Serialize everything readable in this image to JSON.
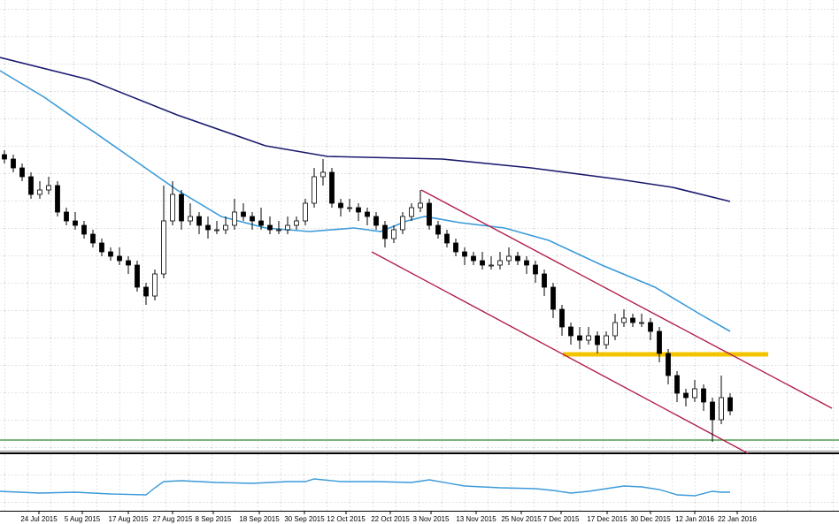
{
  "chart_data": {
    "type": "candlestick",
    "xlim": [
      -0.5,
      94.3
    ],
    "ylim": [
      0,
      102
    ],
    "up_color": "#ffffff",
    "down_color": "#000000",
    "outline_color": "#000000",
    "ohlc": [
      [
        67,
        68,
        65,
        66
      ],
      [
        66,
        67,
        63,
        64
      ],
      [
        64,
        65,
        61,
        62
      ],
      [
        62,
        63,
        57,
        58
      ],
      [
        58,
        61,
        57,
        59
      ],
      [
        59,
        62,
        58,
        60
      ],
      [
        60,
        61,
        53,
        54
      ],
      [
        54,
        55,
        51,
        52
      ],
      [
        52,
        54,
        50,
        51
      ],
      [
        51,
        52,
        48,
        49
      ],
      [
        49,
        50,
        46,
        47
      ],
      [
        47,
        48,
        44,
        45
      ],
      [
        45,
        46,
        43,
        44
      ],
      [
        44,
        46,
        42,
        43
      ],
      [
        43,
        44,
        40,
        42
      ],
      [
        42,
        43,
        36,
        37
      ],
      [
        37,
        38,
        33,
        35
      ],
      [
        35,
        41,
        34,
        40
      ],
      [
        40,
        60,
        39,
        52
      ],
      [
        52,
        61,
        51,
        58
      ],
      [
        58,
        59,
        50,
        52
      ],
      [
        52,
        56,
        51,
        53
      ],
      [
        53,
        54,
        49,
        51
      ],
      [
        51,
        53,
        48,
        50
      ],
      [
        50,
        52,
        49,
        50
      ],
      [
        50,
        53,
        49,
        51
      ],
      [
        51,
        57,
        50,
        54
      ],
      [
        54,
        56,
        52,
        53
      ],
      [
        53,
        54,
        50,
        52
      ],
      [
        52,
        55,
        50,
        51
      ],
      [
        51,
        53,
        49,
        50
      ],
      [
        50,
        52,
        49,
        50
      ],
      [
        50,
        53,
        49,
        51
      ],
      [
        51,
        53,
        50,
        52
      ],
      [
        52,
        57,
        51,
        56
      ],
      [
        56,
        64,
        55,
        62
      ],
      [
        62,
        66,
        60,
        63
      ],
      [
        63,
        64,
        55,
        56
      ],
      [
        56,
        57,
        53,
        55
      ],
      [
        55,
        57,
        54,
        55
      ],
      [
        55,
        56,
        52,
        54
      ],
      [
        54,
        55,
        51,
        53
      ],
      [
        53,
        54,
        50,
        51
      ],
      [
        51,
        52,
        46,
        48
      ],
      [
        48,
        51,
        47,
        50
      ],
      [
        50,
        54,
        49,
        53
      ],
      [
        53,
        56,
        52,
        55
      ],
      [
        55,
        59,
        54,
        56
      ],
      [
        56,
        57,
        50,
        51
      ],
      [
        51,
        52,
        48,
        49
      ],
      [
        49,
        50,
        46,
        47
      ],
      [
        47,
        48,
        44,
        45
      ],
      [
        45,
        46,
        42,
        44
      ],
      [
        44,
        45,
        42,
        43
      ],
      [
        43,
        45,
        41,
        42
      ],
      [
        42,
        44,
        41,
        42
      ],
      [
        42,
        45,
        41,
        43
      ],
      [
        43,
        46,
        42,
        44
      ],
      [
        44,
        45,
        42,
        43
      ],
      [
        43,
        44,
        40,
        42
      ],
      [
        42,
        43,
        38,
        40
      ],
      [
        40,
        41,
        35,
        37
      ],
      [
        37,
        38,
        30,
        32
      ],
      [
        32,
        33,
        26,
        28
      ],
      [
        28,
        29,
        24,
        26
      ],
      [
        26,
        28,
        23,
        25
      ],
      [
        25,
        28,
        24,
        26
      ],
      [
        26,
        27,
        22,
        24
      ],
      [
        24,
        27,
        23,
        26
      ],
      [
        26,
        31,
        25,
        29
      ],
      [
        29,
        32,
        28,
        30
      ],
      [
        30,
        31,
        28,
        29
      ],
      [
        29,
        31,
        28,
        29
      ],
      [
        29,
        30,
        25,
        27
      ],
      [
        27,
        28,
        20,
        22
      ],
      [
        22,
        23,
        15,
        17
      ],
      [
        17,
        18,
        11,
        13
      ],
      [
        13,
        14,
        10,
        12
      ],
      [
        12,
        16,
        11,
        14
      ],
      [
        14,
        15,
        9,
        11
      ],
      [
        11,
        12,
        2,
        7
      ],
      [
        7,
        17,
        6,
        12
      ],
      [
        12,
        13,
        8,
        9
      ]
    ],
    "series": [
      {
        "color": "#1a1a6e",
        "x": [
          -0.5,
          9.5,
          19.5,
          29.5,
          36.5,
          49.5,
          59.5,
          69.5,
          75.5,
          82
        ],
        "values": [
          89,
          84,
          76,
          69,
          66.6,
          66,
          64,
          61.4,
          59.6,
          56.4
        ]
      },
      {
        "color": "#3a9ad9",
        "x": [
          -0.5,
          4.5,
          9.5,
          14.5,
          19.5,
          24.5,
          29.5,
          34.5,
          39.5,
          42.5,
          45.5,
          47.5,
          51.5,
          56.5,
          61.5,
          67.5,
          73.5,
          78.5,
          82
        ],
        "values": [
          86,
          80,
          73,
          66,
          59,
          53,
          50.4,
          49.6,
          50.4,
          49.6,
          52,
          53,
          51.6,
          50.4,
          47.6,
          42,
          37,
          31,
          27
        ]
      }
    ],
    "trendlines": [
      {
        "color": "#b0204a",
        "x": [
          47.1,
          93.5
        ],
        "values": [
          59,
          9.6
        ]
      },
      {
        "color": "#b0204a",
        "x": [
          41.5,
          84
        ],
        "values": [
          45,
          -0.6
        ]
      }
    ],
    "levels": [
      {
        "color": "#f5c400",
        "value": 21.8,
        "x": [
          63.1,
          86.3
        ]
      },
      {
        "color": "#2e8b2e",
        "value": 2.4,
        "x": [
          -0.5,
          94.3
        ]
      }
    ],
    "oscillator": {
      "color": "#3a9ad9",
      "ylim": [
        0,
        63
      ],
      "x": [
        -0.5,
        4,
        8,
        12,
        16,
        17,
        18,
        20,
        24,
        28,
        32,
        34,
        35,
        38,
        42,
        46,
        48,
        52,
        56,
        60,
        62,
        64,
        66,
        70,
        72,
        74,
        76,
        78,
        80,
        81,
        82
      ],
      "values": [
        22,
        20,
        21,
        19,
        18,
        26,
        33,
        34,
        32,
        31,
        33,
        33,
        36,
        33,
        33,
        32,
        35,
        28,
        26,
        25,
        23,
        20,
        22,
        28,
        27,
        24,
        18,
        17,
        22,
        21,
        21
      ]
    },
    "xticks": [
      {
        "value": 3.9,
        "label": "24 Jul 2015"
      },
      {
        "value": 8.8,
        "label": "5 Aug 2015"
      },
      {
        "value": 14,
        "label": "17 Aug 2015"
      },
      {
        "value": 19,
        "label": "27 Aug 2015"
      },
      {
        "value": 23.6,
        "label": "8 Sep 2015"
      },
      {
        "value": 28.8,
        "label": "18 Sep 2015"
      },
      {
        "value": 33.9,
        "label": "30 Sep 2015"
      },
      {
        "value": 38.6,
        "label": "12 Oct 2015"
      },
      {
        "value": 43.6,
        "label": "22 Oct 2015"
      },
      {
        "value": 48.2,
        "label": "3 Nov 2015"
      },
      {
        "value": 53.3,
        "label": "13 Nov 2015"
      },
      {
        "value": 58.4,
        "label": "25 Nov 2015"
      },
      {
        "value": 62.9,
        "label": "7 Dec 2015"
      },
      {
        "value": 68.1,
        "label": "17 Dec 2015"
      },
      {
        "value": 73,
        "label": "30 Dec 2015"
      },
      {
        "value": 78,
        "label": "12 Jan 2016"
      },
      {
        "value": 82.8,
        "label": "22 Jan 2016"
      }
    ],
    "grid": true
  }
}
